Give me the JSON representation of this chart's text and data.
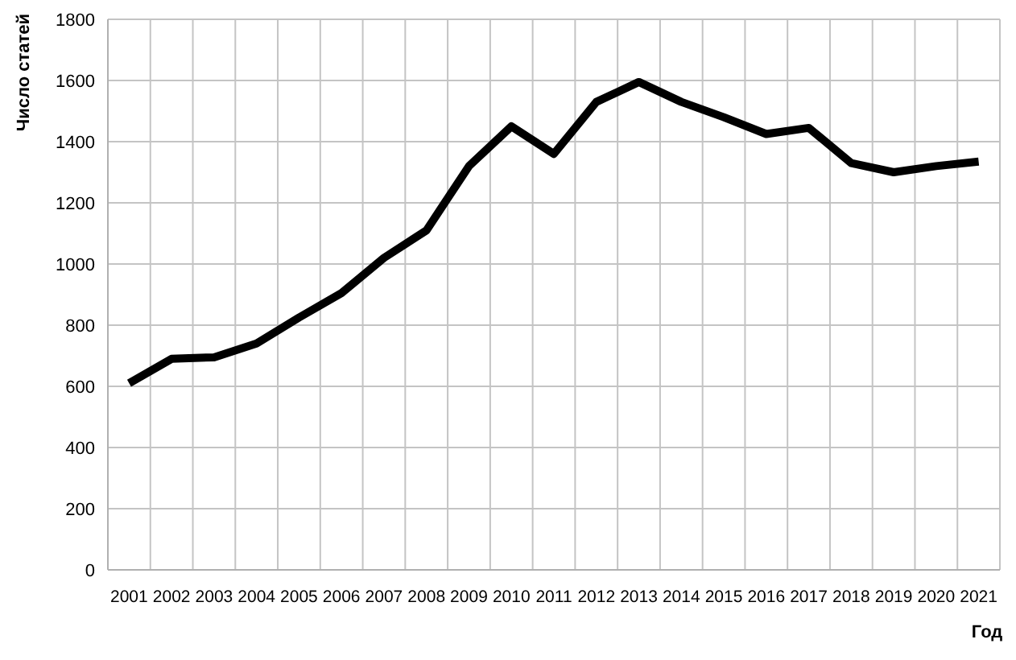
{
  "chart_data": {
    "type": "line",
    "xlabel": "Год",
    "ylabel": "Число статей",
    "categories": [
      "2001",
      "2002",
      "2003",
      "2004",
      "2005",
      "2006",
      "2007",
      "2008",
      "2009",
      "2010",
      "2011",
      "2012",
      "2013",
      "2014",
      "2015",
      "2016",
      "2017",
      "2018",
      "2019",
      "2020",
      "2021"
    ],
    "series": [
      {
        "color": "#000000",
        "values": [
          610,
          690,
          695,
          740,
          825,
          905,
          1020,
          1110,
          1320,
          1450,
          1360,
          1530,
          1595,
          1530,
          1480,
          1425,
          1445,
          1330,
          1300,
          1320,
          1335
        ]
      }
    ],
    "ylim": [
      0,
      1800
    ],
    "yticks": [
      0,
      200,
      400,
      600,
      800,
      1000,
      1200,
      1400,
      1600,
      1800
    ],
    "grid": true,
    "marker": "none",
    "line_style": "solid"
  }
}
